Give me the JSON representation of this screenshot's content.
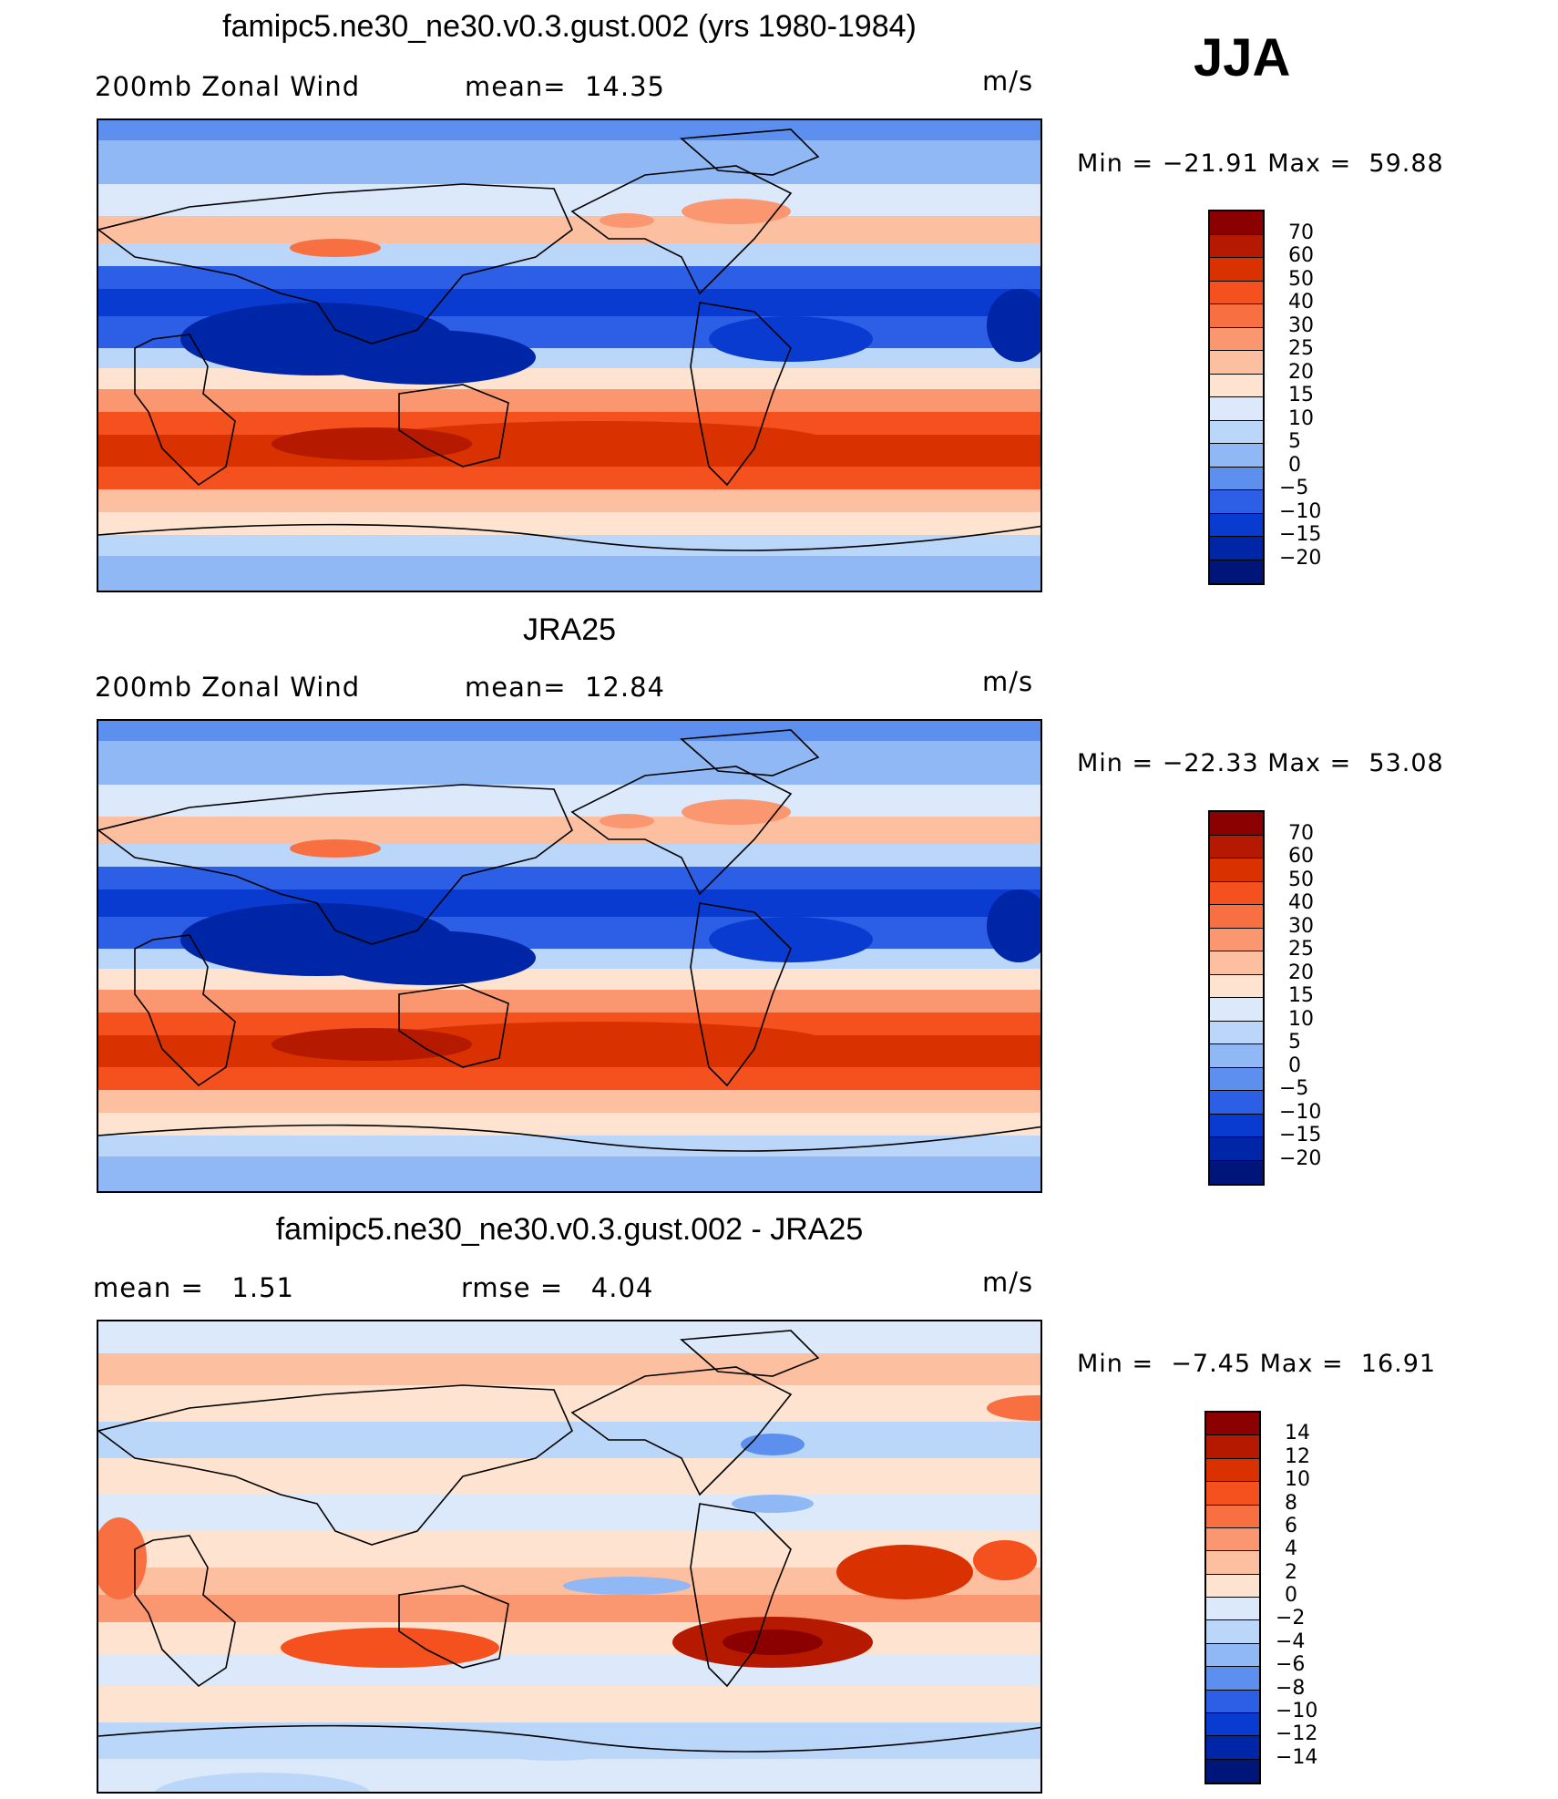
{
  "season": "JJA",
  "panels": [
    {
      "title": "famipc5.ne30_ne30.v0.3.gust.002 (yrs 1980-1984)",
      "left_label": "200mb Zonal Wind",
      "mid_label": "mean=  14.35",
      "units": "m/s",
      "minmax": "Min = −21.91 Max =  59.88",
      "colorbar": "main"
    },
    {
      "title": "JRA25",
      "left_label": "200mb Zonal Wind",
      "mid_label": "mean=  12.84",
      "units": "m/s",
      "minmax": "Min = −22.33 Max =  53.08",
      "colorbar": "main"
    },
    {
      "title": "famipc5.ne30_ne30.v0.3.gust.002 - JRA25",
      "left_label": "mean =   1.51",
      "mid_label": "rmse =   4.04",
      "units": "m/s",
      "minmax": "Min =  −7.45 Max =  16.91",
      "colorbar": "diff"
    }
  ],
  "colorbars": {
    "main": {
      "labels": [
        "70",
        "60",
        "50",
        "40",
        "30",
        "25",
        "20",
        "15",
        "10",
        "5",
        "0",
        "−5",
        "−10",
        "−15",
        "−20"
      ],
      "colors": [
        "#8b0000",
        "#b51a00",
        "#d93200",
        "#f4511e",
        "#f87042",
        "#fa9670",
        "#fcbfa0",
        "#fde3d0",
        "#dbe9fb",
        "#bad6f8",
        "#90b8f5",
        "#5c8fee",
        "#2d5ee6",
        "#0a3bd0",
        "#0026a8",
        "#00157a"
      ]
    },
    "diff": {
      "labels": [
        "14",
        "12",
        "10",
        "8",
        "6",
        "4",
        "2",
        "0",
        "−2",
        "−4",
        "−6",
        "−8",
        "−10",
        "−12",
        "−14"
      ],
      "colors": [
        "#8b0000",
        "#b51a00",
        "#d93200",
        "#f4511e",
        "#f87042",
        "#fa9670",
        "#fcbfa0",
        "#fde3d0",
        "#dbe9fb",
        "#bad6f8",
        "#90b8f5",
        "#5c8fee",
        "#2d5ee6",
        "#0a3bd0",
        "#0026a8",
        "#00157a"
      ]
    }
  }
}
